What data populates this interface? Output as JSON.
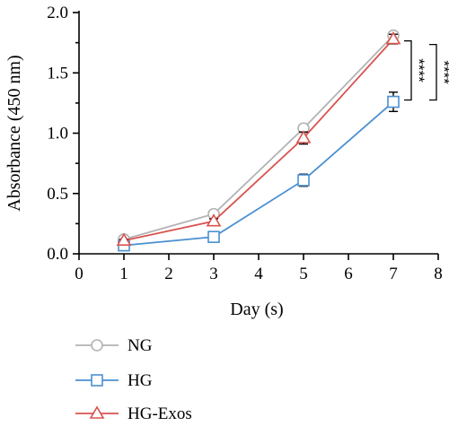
{
  "chart_data": {
    "type": "line",
    "xlabel": "Day (s)",
    "ylabel": "Absorbance (450 nm)",
    "xlim": [
      0,
      8
    ],
    "ylim": [
      0,
      2
    ],
    "xticks": [
      0,
      1,
      2,
      3,
      4,
      5,
      6,
      7,
      8
    ],
    "yticks": [
      0.0,
      0.5,
      1.0,
      1.5,
      2.0
    ],
    "ytick_labels": [
      "0.0",
      "0.5",
      "1.0",
      "1.5",
      "2.0"
    ],
    "x": [
      1,
      3,
      5,
      7
    ],
    "grid": false,
    "legend_position": "bottom-left",
    "series": [
      {
        "name": "NG",
        "marker": "circle",
        "color": "#b3b3b3",
        "values": [
          0.12,
          0.33,
          1.04,
          1.81
        ],
        "errors": [
          0.02,
          0.02,
          0.02,
          0.03
        ]
      },
      {
        "name": "HG",
        "marker": "square",
        "color": "#4a90d0",
        "values": [
          0.07,
          0.14,
          0.61,
          1.26
        ],
        "errors": [
          0.01,
          0.02,
          0.05,
          0.08
        ]
      },
      {
        "name": "HG-Exos",
        "marker": "triangle",
        "color": "#d9534f",
        "values": [
          0.11,
          0.27,
          0.96,
          1.78
        ],
        "errors": [
          0.01,
          0.02,
          0.05,
          0.04
        ]
      }
    ],
    "significance": [
      {
        "label": "****",
        "from": "NG",
        "to": "HG"
      },
      {
        "label": "****",
        "from": "HG-Exos",
        "to": "HG"
      }
    ]
  }
}
